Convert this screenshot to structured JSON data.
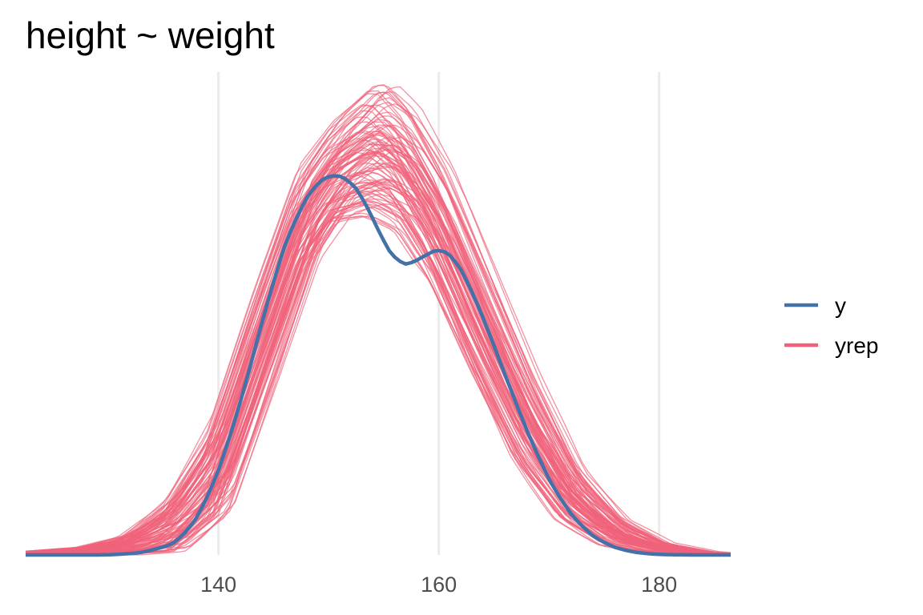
{
  "chart_data": {
    "type": "line",
    "title": "height ~ weight",
    "xlabel": "",
    "ylabel": "",
    "xlim": [
      122.5,
      186.5
    ],
    "x_ticks": [
      140,
      160,
      180
    ],
    "y_axis_shown": false,
    "grid": "vertical-major",
    "legend_position": "right",
    "legend": [
      {
        "key": "y",
        "label": "y",
        "color": "#4472a8"
      },
      {
        "key": "yrep",
        "label": "yrep",
        "color": "#f0627a"
      }
    ],
    "y": {
      "name": "y",
      "x": [
        122.5,
        130,
        133,
        136,
        138,
        140,
        142,
        144,
        146,
        148,
        149.5,
        150.9,
        152.5,
        154,
        155.5,
        157,
        158.5,
        160.3,
        162,
        164,
        166,
        168,
        170,
        172,
        174,
        176,
        178,
        180,
        183,
        186.5
      ],
      "density": [
        0.0,
        0.0,
        0.0005,
        0.0025,
        0.008,
        0.019,
        0.035,
        0.054,
        0.0715,
        0.0825,
        0.0868,
        0.0876,
        0.0848,
        0.0775,
        0.0693,
        0.0662,
        0.0685,
        0.0708,
        0.0662,
        0.0548,
        0.0415,
        0.0285,
        0.0172,
        0.0092,
        0.0042,
        0.0016,
        0.0005,
        0.0001,
        0.0,
        0.0
      ]
    },
    "yrep_envelope": {
      "name": "yrep",
      "x": [
        122.5,
        128,
        132,
        136,
        140,
        144,
        148,
        151,
        154,
        155,
        157,
        160,
        164,
        168,
        172,
        176,
        180,
        184,
        186.5
      ],
      "density_low": [
        0.0,
        0.0,
        0.0,
        0.0008,
        0.009,
        0.037,
        0.066,
        0.0765,
        0.078,
        0.077,
        0.0745,
        0.063,
        0.041,
        0.021,
        0.008,
        0.002,
        0.0003,
        0.0,
        0.0
      ],
      "density_high": [
        0.0008,
        0.002,
        0.005,
        0.014,
        0.032,
        0.062,
        0.09,
        0.101,
        0.109,
        0.1095,
        0.104,
        0.09,
        0.066,
        0.042,
        0.021,
        0.009,
        0.003,
        0.0008,
        0.0003
      ]
    },
    "yrep_draws": 100,
    "ylim": [
      0,
      0.111
    ]
  }
}
